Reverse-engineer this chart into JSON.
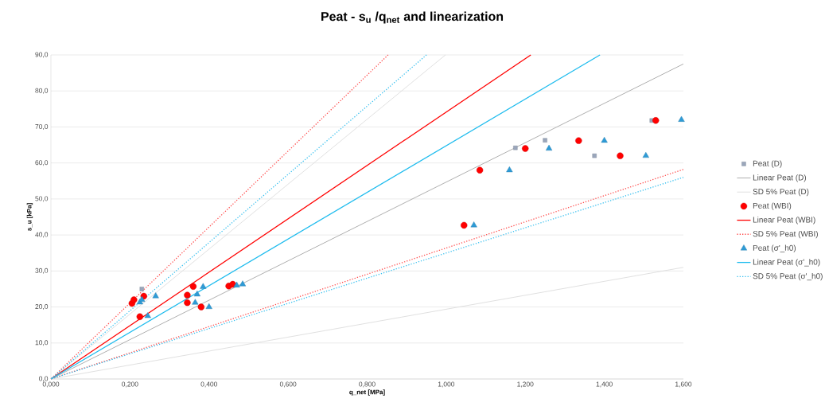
{
  "chart_data": {
    "type": "scatter",
    "title": "Peat - s$_{u}$ /q$_{net}$ and linearization",
    "xlabel": "q_net [MPa]",
    "ylabel": "s_u [kPa]",
    "xlim": [
      0,
      1.6
    ],
    "ylim": [
      0,
      90
    ],
    "xticks": [
      {
        "value": 0,
        "label": "0,000"
      },
      {
        "value": 0.2,
        "label": "0,200"
      },
      {
        "value": 0.4,
        "label": "0,400"
      },
      {
        "value": 0.6,
        "label": "0,600"
      },
      {
        "value": 0.8,
        "label": "0,800"
      },
      {
        "value": 1.0,
        "label": "1,000"
      },
      {
        "value": 1.2,
        "label": "1,200"
      },
      {
        "value": 1.4,
        "label": "1,400"
      },
      {
        "value": 1.6,
        "label": "1,600"
      }
    ],
    "yticks": [
      {
        "value": 0,
        "label": "0,0"
      },
      {
        "value": 10,
        "label": "10,0"
      },
      {
        "value": 20,
        "label": "20,0"
      },
      {
        "value": 30,
        "label": "30,0"
      },
      {
        "value": 40,
        "label": "40,0"
      },
      {
        "value": 50,
        "label": "50,0"
      },
      {
        "value": 60,
        "label": "60,0"
      },
      {
        "value": 70,
        "label": "70,0"
      },
      {
        "value": 80,
        "label": "80,0"
      },
      {
        "value": 90,
        "label": "90,0"
      }
    ],
    "grid": "y",
    "legend": "right",
    "series": [
      {
        "name": "Peat (D)",
        "marker": "square",
        "color": "#9aa6bb",
        "x": [
          0.23,
          1.175,
          1.25,
          1.375,
          1.52
        ],
        "values": [
          25,
          64.2,
          66.3,
          62,
          71.8
        ]
      },
      {
        "name": "Linear Peat (D)",
        "type": "line",
        "line_style": "solid",
        "color": "#a6a6a6",
        "x": [
          0,
          1.6
        ],
        "values": [
          0,
          87.5
        ]
      },
      {
        "name": "SD 5% Peat (D)",
        "type": "line",
        "line_style": "solid",
        "color": "#dcdcdc",
        "x": [
          0.998,
          0,
          1.6
        ],
        "values": [
          90,
          0,
          31
        ]
      },
      {
        "name": "Peat (WBI)",
        "marker": "circle",
        "color": "#ff0000",
        "x": [
          0.205,
          0.21,
          0.235,
          0.225,
          0.345,
          0.36,
          0.345,
          0.38,
          0.45,
          0.46,
          1.045,
          1.085,
          1.2,
          1.335,
          1.44,
          1.53
        ],
        "values": [
          21.0,
          22,
          23,
          17.3,
          23.3,
          25.7,
          21.2,
          20,
          25.8,
          26.3,
          42.7,
          58,
          64,
          66.2,
          62,
          71.8
        ]
      },
      {
        "name": "Linear Peat (WBI)",
        "type": "line",
        "line_style": "solid",
        "color": "#ff0000",
        "x": [
          0,
          1.214
        ],
        "values": [
          0,
          90
        ]
      },
      {
        "name": "SD 5% Peat (WBI)",
        "type": "line",
        "line_style": "dotted",
        "color": "#ff4d4d",
        "x": [
          0.853,
          0,
          1.6
        ],
        "values": [
          90,
          0,
          58.2
        ]
      },
      {
        "name": "Peat (σ'_h0)",
        "marker": "triangle",
        "color": "#2e9bd6",
        "x": [
          0.225,
          0.23,
          0.265,
          0.245,
          0.37,
          0.385,
          0.365,
          0.4,
          0.47,
          0.485,
          1.07,
          1.16,
          1.26,
          1.4,
          1.505,
          1.595
        ],
        "values": [
          21.3,
          22,
          23,
          17.5,
          23.5,
          25.6,
          21.2,
          20,
          26,
          26.3,
          42.7,
          58,
          64,
          66.2,
          62,
          72
        ]
      },
      {
        "name": "Linear Peat (σ'_h0)",
        "type": "line",
        "line_style": "solid",
        "color": "#1fbcee",
        "x": [
          0,
          1.389
        ],
        "values": [
          0,
          90
        ]
      },
      {
        "name": "SD 5% Peat (σ'_h0)",
        "type": "line",
        "line_style": "dotted",
        "color": "#39c0ef",
        "x": [
          0.95,
          0,
          1.6
        ],
        "values": [
          90,
          0,
          56
        ]
      }
    ]
  }
}
